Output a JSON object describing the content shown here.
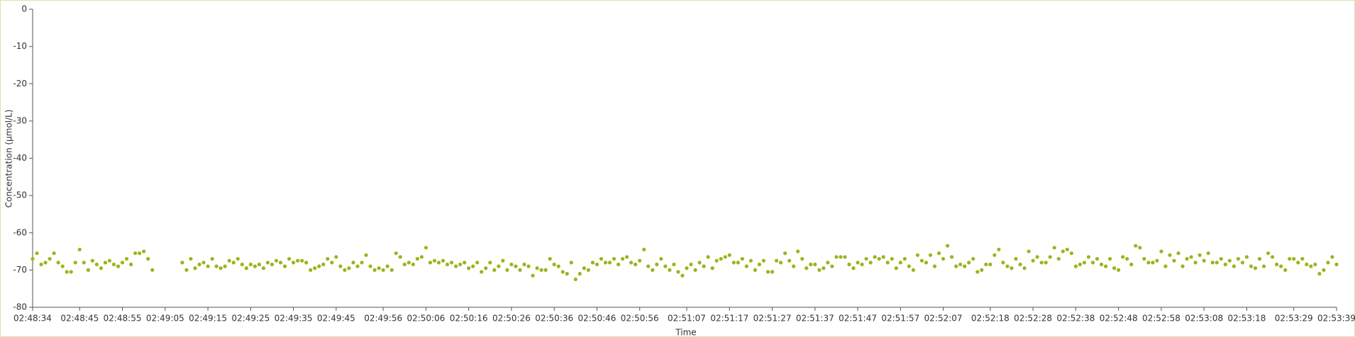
{
  "chart_data": {
    "type": "scatter",
    "x_label": "Time",
    "y_label": "Concentration (µmol/L)",
    "color": "#9db31c",
    "grid": false,
    "xlim": [
      "02:48:34",
      "02:53:39"
    ],
    "xticks": [
      "02:48:34",
      "02:48:45",
      "02:48:55",
      "02:49:05",
      "02:49:15",
      "02:49:25",
      "02:49:35",
      "02:49:45",
      "02:49:56",
      "02:50:06",
      "02:50:16",
      "02:50:26",
      "02:50:36",
      "02:50:46",
      "02:50:56",
      "02:51:07",
      "02:51:17",
      "02:51:27",
      "02:51:37",
      "02:51:47",
      "02:51:57",
      "02:52:07",
      "02:52:18",
      "02:52:28",
      "02:52:38",
      "02:52:48",
      "02:52:58",
      "02:53:08",
      "02:53:18",
      "02:53:29",
      "02:53:39"
    ],
    "ylim": [
      -80,
      0
    ],
    "yticks": [
      0,
      -10,
      -20,
      -30,
      -40,
      -50,
      -60,
      -70,
      -80
    ],
    "x": [
      "02:48:34",
      "02:48:35",
      "02:48:36",
      "02:48:37",
      "02:48:38",
      "02:48:39",
      "02:48:40",
      "02:48:41",
      "02:48:42",
      "02:48:43",
      "02:48:44",
      "02:48:45",
      "02:48:46",
      "02:48:47",
      "02:48:48",
      "02:48:49",
      "02:48:50",
      "02:48:51",
      "02:48:52",
      "02:48:53",
      "02:48:54",
      "02:48:55",
      "02:48:56",
      "02:48:57",
      "02:48:58",
      "02:48:59",
      "02:49:00",
      "02:49:01",
      "02:49:02",
      "02:49:09",
      "02:49:10",
      "02:49:11",
      "02:49:12",
      "02:49:13",
      "02:49:14",
      "02:49:15",
      "02:49:16",
      "02:49:17",
      "02:49:18",
      "02:49:19",
      "02:49:20",
      "02:49:21",
      "02:49:22",
      "02:49:23",
      "02:49:24",
      "02:49:25",
      "02:49:26",
      "02:49:27",
      "02:49:28",
      "02:49:29",
      "02:49:30",
      "02:49:31",
      "02:49:32",
      "02:49:33",
      "02:49:34",
      "02:49:35",
      "02:49:36",
      "02:49:37",
      "02:49:38",
      "02:49:39",
      "02:49:40",
      "02:49:41",
      "02:49:42",
      "02:49:43",
      "02:49:44",
      "02:49:45",
      "02:49:46",
      "02:49:47",
      "02:49:48",
      "02:49:49",
      "02:49:50",
      "02:49:51",
      "02:49:52",
      "02:49:53",
      "02:49:54",
      "02:49:55",
      "02:49:56",
      "02:49:57",
      "02:49:58",
      "02:49:59",
      "02:50:00",
      "02:50:01",
      "02:50:02",
      "02:50:03",
      "02:50:04",
      "02:50:05",
      "02:50:06",
      "02:50:07",
      "02:50:08",
      "02:50:09",
      "02:50:10",
      "02:50:11",
      "02:50:12",
      "02:50:13",
      "02:50:14",
      "02:50:15",
      "02:50:16",
      "02:50:17",
      "02:50:18",
      "02:50:19",
      "02:50:20",
      "02:50:21",
      "02:50:22",
      "02:50:23",
      "02:50:24",
      "02:50:25",
      "02:50:26",
      "02:50:27",
      "02:50:28",
      "02:50:29",
      "02:50:30",
      "02:50:31",
      "02:50:32",
      "02:50:33",
      "02:50:34",
      "02:50:35",
      "02:50:36",
      "02:50:37",
      "02:50:38",
      "02:50:39",
      "02:50:40",
      "02:50:41",
      "02:50:42",
      "02:50:43",
      "02:50:44",
      "02:50:45",
      "02:50:46",
      "02:50:47",
      "02:50:48",
      "02:50:49",
      "02:50:50",
      "02:50:51",
      "02:50:52",
      "02:50:53",
      "02:50:54",
      "02:50:55",
      "02:50:56",
      "02:50:57",
      "02:50:58",
      "02:50:59",
      "02:51:00",
      "02:51:01",
      "02:51:02",
      "02:51:03",
      "02:51:04",
      "02:51:05",
      "02:51:06",
      "02:51:07",
      "02:51:08",
      "02:51:09",
      "02:51:10",
      "02:51:11",
      "02:51:12",
      "02:51:13",
      "02:51:14",
      "02:51:15",
      "02:51:16",
      "02:51:17",
      "02:51:18",
      "02:51:19",
      "02:51:20",
      "02:51:21",
      "02:51:22",
      "02:51:23",
      "02:51:24",
      "02:51:25",
      "02:51:26",
      "02:51:27",
      "02:51:28",
      "02:51:29",
      "02:51:30",
      "02:51:31",
      "02:51:32",
      "02:51:33",
      "02:51:34",
      "02:51:35",
      "02:51:36",
      "02:51:37",
      "02:51:38",
      "02:51:39",
      "02:51:40",
      "02:51:41",
      "02:51:42",
      "02:51:43",
      "02:51:44",
      "02:51:45",
      "02:51:46",
      "02:51:47",
      "02:51:48",
      "02:51:49",
      "02:51:50",
      "02:51:51",
      "02:51:52",
      "02:51:53",
      "02:51:54",
      "02:51:55",
      "02:51:56",
      "02:51:57",
      "02:51:58",
      "02:51:59",
      "02:52:00",
      "02:52:01",
      "02:52:02",
      "02:52:03",
      "02:52:04",
      "02:52:05",
      "02:52:06",
      "02:52:07",
      "02:52:08",
      "02:52:09",
      "02:52:10",
      "02:52:11",
      "02:52:12",
      "02:52:13",
      "02:52:14",
      "02:52:15",
      "02:52:16",
      "02:52:17",
      "02:52:18",
      "02:52:19",
      "02:52:20",
      "02:52:21",
      "02:52:22",
      "02:52:23",
      "02:52:24",
      "02:52:25",
      "02:52:26",
      "02:52:27",
      "02:52:28",
      "02:52:29",
      "02:52:30",
      "02:52:31",
      "02:52:32",
      "02:52:33",
      "02:52:34",
      "02:52:35",
      "02:52:36",
      "02:52:37",
      "02:52:38",
      "02:52:39",
      "02:52:40",
      "02:52:41",
      "02:52:42",
      "02:52:43",
      "02:52:44",
      "02:52:45",
      "02:52:46",
      "02:52:47",
      "02:52:48",
      "02:52:49",
      "02:52:50",
      "02:52:51",
      "02:52:52",
      "02:52:53",
      "02:52:54",
      "02:52:55",
      "02:52:56",
      "02:52:57",
      "02:52:58",
      "02:52:59",
      "02:53:00",
      "02:53:01",
      "02:53:02",
      "02:53:03",
      "02:53:04",
      "02:53:05",
      "02:53:06",
      "02:53:07",
      "02:53:08",
      "02:53:09",
      "02:53:10",
      "02:53:11",
      "02:53:12",
      "02:53:13",
      "02:53:14",
      "02:53:15",
      "02:53:16",
      "02:53:17",
      "02:53:18",
      "02:53:19",
      "02:53:20",
      "02:53:21",
      "02:53:22",
      "02:53:23",
      "02:53:24",
      "02:53:25",
      "02:53:26",
      "02:53:27",
      "02:53:28",
      "02:53:29",
      "02:53:30",
      "02:53:31",
      "02:53:32",
      "02:53:33",
      "02:53:34",
      "02:53:35",
      "02:53:36",
      "02:53:37",
      "02:53:38",
      "02:53:39"
    ],
    "values": [
      -67,
      -65.5,
      -68.5,
      -68,
      -67,
      -65.5,
      -68,
      -69,
      -70.5,
      -70.5,
      -68,
      -64.5,
      -68,
      -70,
      -67.5,
      -68.5,
      -69.5,
      -68,
      -67.5,
      -68.5,
      -69,
      -68,
      -67,
      -68.5,
      -65.5,
      -65.5,
      -65,
      -67,
      -70,
      -68,
      -70,
      -67,
      -69.5,
      -68.5,
      -68,
      -69,
      -67,
      -69,
      -69.5,
      -69,
      -67.5,
      -68,
      -67,
      -68.5,
      -69.5,
      -68.5,
      -69,
      -68.5,
      -69.5,
      -68,
      -68.5,
      -67.5,
      -68,
      -69,
      -67,
      -68,
      -67.5,
      -67.5,
      -68,
      -70,
      -69.5,
      -69,
      -68.5,
      -67,
      -68,
      -66.5,
      -69,
      -70,
      -69.5,
      -68,
      -69,
      -68,
      -66,
      -69,
      -70,
      -69.5,
      -70,
      -69,
      -70,
      -65.5,
      -66.5,
      -68.5,
      -68,
      -68.5,
      -67,
      -66.5,
      -64,
      -68,
      -67.5,
      -68,
      -67.5,
      -68.5,
      -68,
      -69,
      -68.5,
      -68,
      -69.5,
      -69,
      -68,
      -70.5,
      -69.5,
      -68,
      -70,
      -69,
      -67.5,
      -70,
      -68.5,
      -69,
      -70,
      -68.5,
      -69,
      -71.5,
      -69.5,
      -70,
      -70,
      -67,
      -68.5,
      -69,
      -70.5,
      -71,
      -68,
      -72.5,
      -71,
      -69.5,
      -70,
      -68,
      -68.5,
      -67,
      -68,
      -68,
      -67,
      -68.5,
      -67,
      -66.5,
      -68,
      -68.5,
      -67.5,
      -64.5,
      -69,
      -70,
      -68.5,
      -67,
      -69,
      -70,
      -68.5,
      -70.5,
      -71.5,
      -69.5,
      -68.5,
      -70,
      -68,
      -69,
      -66.5,
      -69.5,
      -67.5,
      -67,
      -66.5,
      -66,
      -68,
      -68,
      -67,
      -69,
      -67.5,
      -70,
      -68.5,
      -67.5,
      -70.5,
      -70.5,
      -67.5,
      -68,
      -65.5,
      -67.5,
      -69,
      -65,
      -67,
      -69.5,
      -68.5,
      -68.5,
      -70,
      -69.5,
      -68,
      -69,
      -66.5,
      -66.5,
      -66.5,
      -68.5,
      -69.5,
      -68,
      -68.5,
      -67,
      -68,
      -66.5,
      -67,
      -66.5,
      -68,
      -67,
      -69.5,
      -68,
      -67,
      -69,
      -70,
      -66,
      -67.5,
      -68,
      -66,
      -69,
      -65.5,
      -67,
      -63.5,
      -66.5,
      -69,
      -68.5,
      -69,
      -68,
      -67,
      -70.5,
      -70,
      -68.5,
      -68.5,
      -66,
      -64.5,
      -68,
      -69,
      -69.5,
      -67,
      -68.5,
      -69.5,
      -65,
      -67.5,
      -66.5,
      -68,
      -68,
      -66.5,
      -64,
      -67,
      -65,
      -64.5,
      -65.5,
      -69,
      -68.5,
      -68,
      -66.5,
      -68,
      -67,
      -68.5,
      -69,
      -67,
      -69.5,
      -70,
      -66.5,
      -67,
      -68.5,
      -63.5,
      -64,
      -67,
      -68,
      -68,
      -67.5,
      -65,
      -69,
      -66,
      -67.5,
      -65.5,
      -69,
      -67,
      -66.5,
      -68,
      -66,
      -67.5,
      -65.5,
      -68,
      -68,
      -67,
      -68.5,
      -67.5,
      -69,
      -67,
      -68,
      -66.5,
      -69,
      -69.5,
      -67,
      -69,
      -65.5,
      -66.5,
      -68.5,
      -69,
      -70,
      -67,
      -67,
      -68,
      -67,
      -68.5,
      -69,
      -68.5,
      -71,
      -70,
      -68,
      -66.5,
      -68.5
    ]
  }
}
